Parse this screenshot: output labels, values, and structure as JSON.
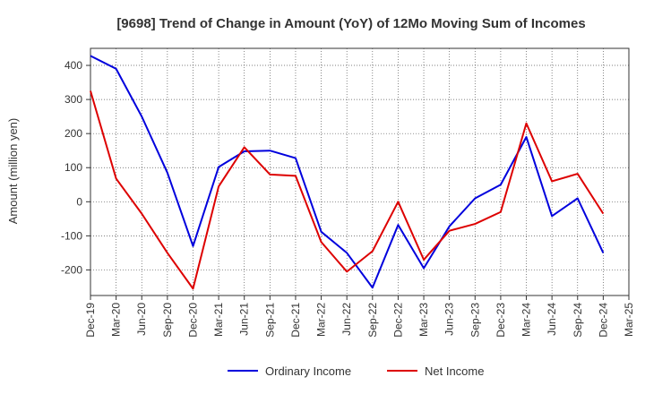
{
  "chart_data": {
    "type": "line",
    "title": "[9698]  Trend of Change in Amount (YoY) of 12Mo Moving Sum of Incomes",
    "xlabel": "",
    "ylabel": "Amount (million yen)",
    "ylim": [
      -275,
      450
    ],
    "yticks": [
      -200,
      -100,
      0,
      100,
      200,
      300,
      400
    ],
    "grid": true,
    "legend_position": "bottom-center",
    "x": [
      "Dec-19",
      "Mar-20",
      "Jun-20",
      "Sep-20",
      "Dec-20",
      "Mar-21",
      "Jun-21",
      "Sep-21",
      "Dec-21",
      "Mar-22",
      "Jun-22",
      "Sep-22",
      "Dec-22",
      "Mar-23",
      "Jun-23",
      "Sep-23",
      "Dec-23",
      "Mar-24",
      "Jun-24",
      "Sep-24",
      "Dec-24",
      "Mar-25"
    ],
    "series": [
      {
        "name": "Ordinary Income",
        "color": "#0000dd",
        "values": [
          428,
          390,
          250,
          85,
          -130,
          102,
          148,
          150,
          128,
          -88,
          -150,
          -252,
          -68,
          -195,
          -72,
          10,
          50,
          190,
          -42,
          10,
          -150,
          null
        ]
      },
      {
        "name": "Net Income",
        "color": "#dd0000",
        "values": [
          325,
          68,
          -35,
          -150,
          -255,
          45,
          160,
          80,
          76,
          -118,
          -205,
          -145,
          0,
          -170,
          -85,
          -65,
          -30,
          230,
          60,
          82,
          -35,
          null
        ]
      }
    ]
  }
}
